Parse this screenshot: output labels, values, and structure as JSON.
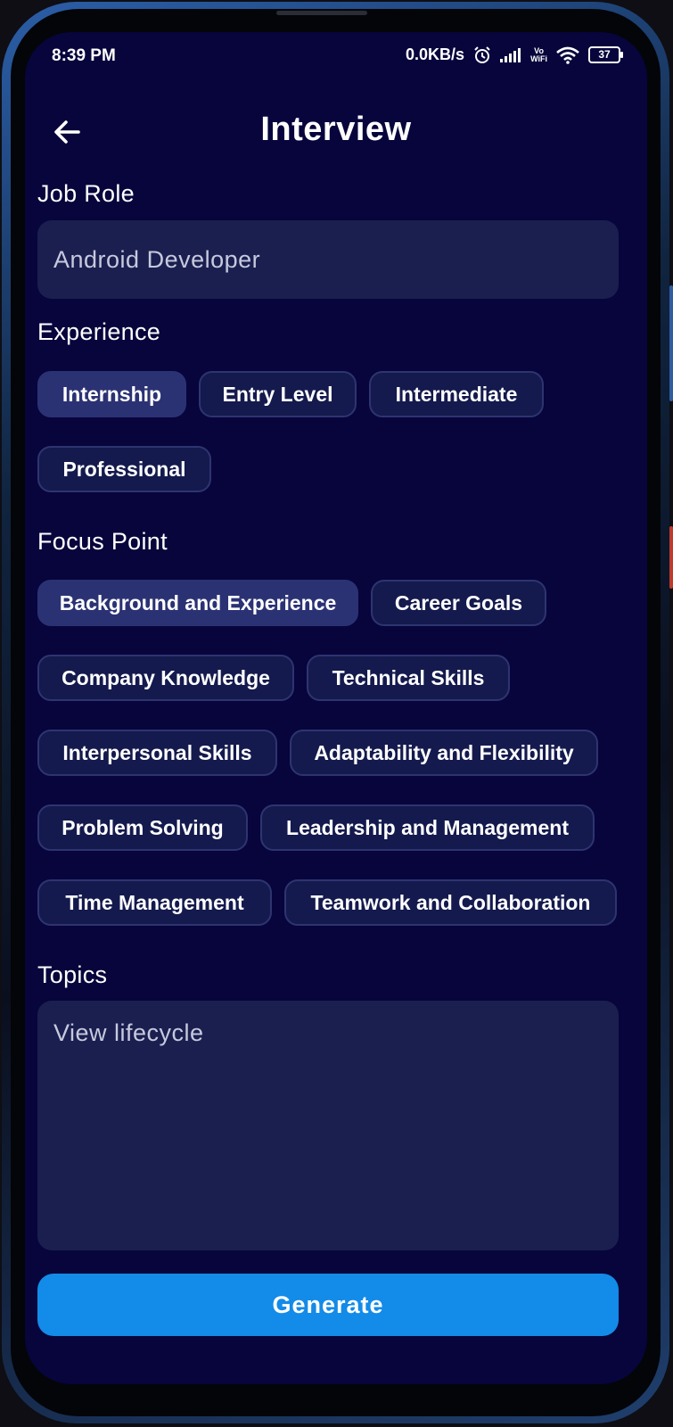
{
  "status_bar": {
    "time": "8:39 PM",
    "network_speed": "0.0KB/s",
    "vowifi_top": "Vo",
    "vowifi_bottom": "WiFi",
    "battery": "37"
  },
  "header": {
    "title": "Interview"
  },
  "job_role": {
    "label": "Job Role",
    "value": "Android Developer"
  },
  "experience": {
    "label": "Experience",
    "options": [
      "Internship",
      "Entry Level",
      "Intermediate",
      "Professional"
    ],
    "selected": "Internship"
  },
  "focus_point": {
    "label": "Focus Point",
    "options": [
      "Background and Experience",
      "Career Goals",
      "Company Knowledge",
      "Technical Skills",
      "Interpersonal Skills",
      "Adaptability and Flexibility",
      "Problem Solving",
      "Leadership and Management",
      "Time Management",
      "Teamwork and Collaboration"
    ],
    "selected": "Background and Experience"
  },
  "topics": {
    "label": "Topics",
    "value": "View lifecycle"
  },
  "generate_button": {
    "label": "Generate"
  },
  "colors": {
    "background": "#07053c",
    "field": "#1a1f50",
    "chip": "#141a4d",
    "chip_selected": "#2b3274",
    "accent": "#138be8"
  }
}
